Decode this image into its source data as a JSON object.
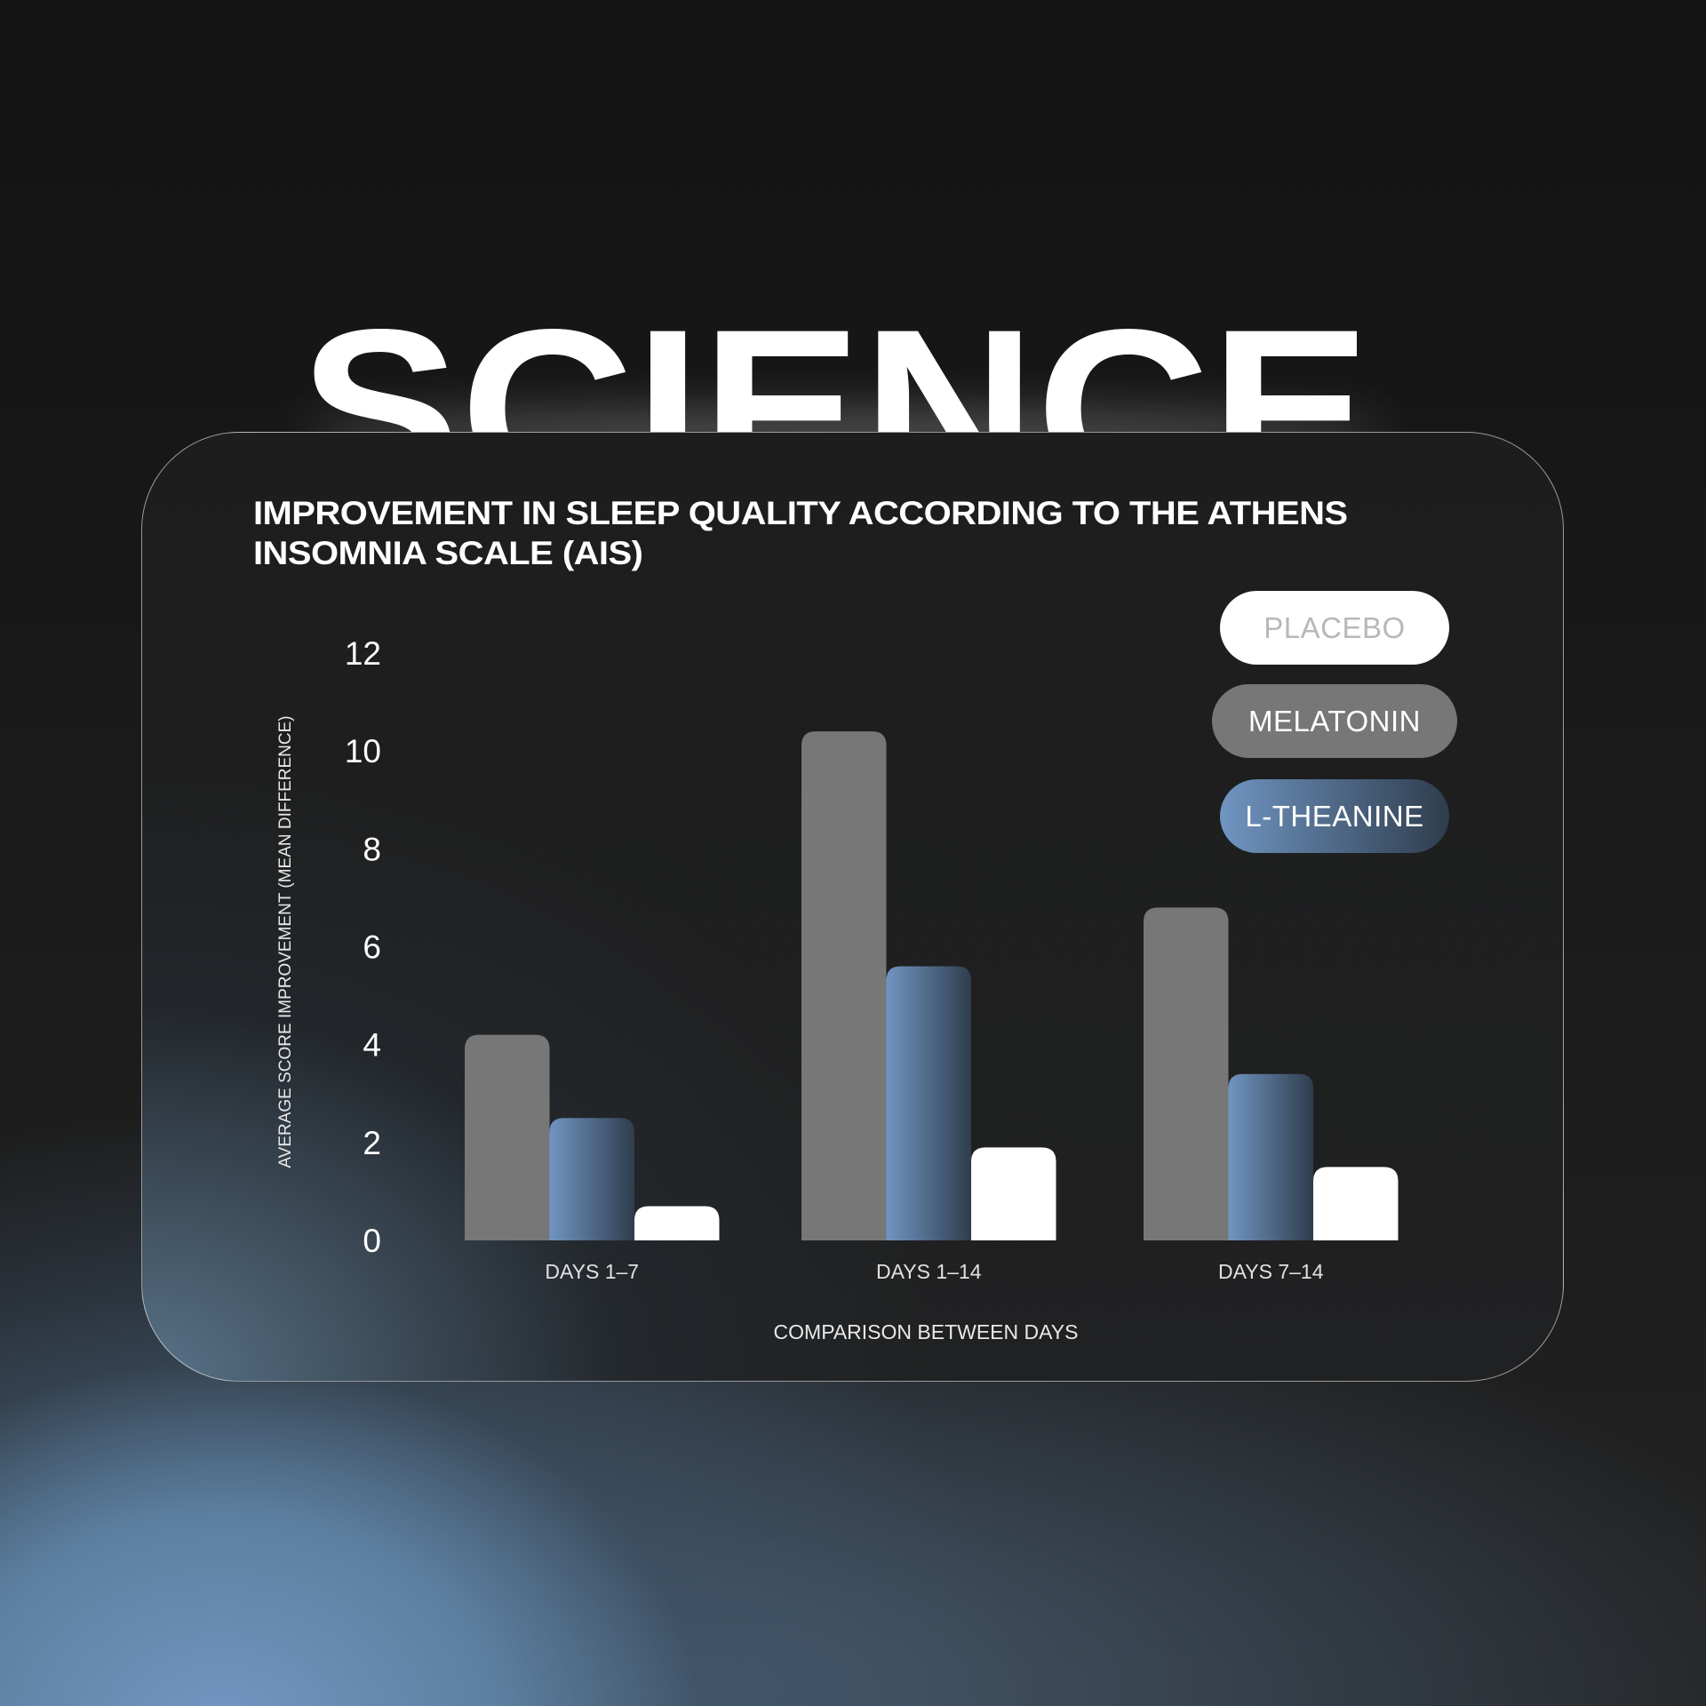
{
  "hero_text": "SCIENCE",
  "chart_data": {
    "type": "bar",
    "title": "IMPROVEMENT IN SLEEP QUALITY ACCORDING TO THE ATHENS INSOMNIA SCALE (AIS)",
    "title_lines": [
      "IMPROVEMENT IN SLEEP QUALITY ACCORDING TO THE ATHENS",
      "INSOMNIA SCALE (AIS)"
    ],
    "xlabel": "COMPARISON BETWEEN DAYS",
    "ylabel": "AVERAGE SCORE IMPROVEMENT (MEAN DIFFERENCE)",
    "categories": [
      "DAYS 1–7",
      "DAYS 1–14",
      "DAYS 7–14"
    ],
    "yticks": [
      "0",
      "2",
      "4",
      "6",
      "8",
      "10",
      "12"
    ],
    "ylim": [
      0,
      12
    ],
    "grid": false,
    "legend_placement": "top-right",
    "series": [
      {
        "name": "MELATONIN",
        "values": [
          4.2,
          10.4,
          6.8
        ],
        "color": "#777777"
      },
      {
        "name": "L-THEANINE",
        "values": [
          2.5,
          5.6,
          3.4
        ],
        "color": "#6a8fbb"
      },
      {
        "name": "PLACEBO",
        "values": [
          0.7,
          1.9,
          1.5
        ],
        "color": "#ffffff"
      }
    ],
    "legend": [
      {
        "label": "PLACEBO",
        "bg": "#ffffff",
        "fg": "#b8b8b8"
      },
      {
        "label": "MELATONIN",
        "bg": "#777777",
        "fg": "#ffffff"
      },
      {
        "label": "L-THEANINE",
        "bg": "#6a8fbb",
        "fg": "#ffffff"
      }
    ]
  }
}
